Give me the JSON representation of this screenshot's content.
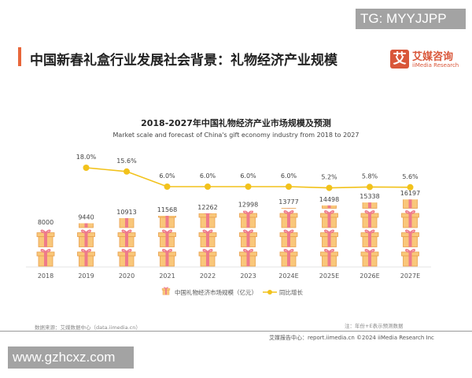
{
  "watermark_top": "TG: MYYJJPP",
  "watermark_bottom": "www.gzhcxz.com",
  "slide_title": "中国新春礼盒行业发展社会背景：礼物经济产业规模",
  "logo": {
    "mark": "艾",
    "cn": "艾媒咨询",
    "en": "iiMedia Research"
  },
  "source": "数据来源：艾媒数据中心（data.iimedia.cn）",
  "note": "注：年份+E表示预测数据",
  "footer": "艾媒报告中心：report.iimedia.cn    ©2024  iiMedia Research  Inc",
  "colors": {
    "accent": "#e8663a",
    "gift_box": "#f9c77a",
    "ribbon": "#ee7a8a",
    "line": "#f2c21b"
  },
  "chart_data": {
    "type": "bar+line",
    "title": "2018-2027年中国礼物经济产业市场规模及预测",
    "subtitle": "Market scale and forecast of China's gift economy industry from 2018 to 2027",
    "categories": [
      "2018",
      "2019",
      "2020",
      "2021",
      "2022",
      "2023",
      "2024E",
      "2025E",
      "2026E",
      "2027E"
    ],
    "series": [
      {
        "name": "中国礼物经济市场规模（亿元）",
        "type": "pictorial-bar",
        "values": [
          8000,
          9440,
          10913,
          11568,
          12262,
          12998,
          13777,
          14498,
          15338,
          16197
        ]
      },
      {
        "name": "同比增长",
        "type": "line",
        "unit": "%",
        "values": [
          null,
          18.0,
          15.6,
          6.0,
          6.0,
          6.0,
          6.0,
          5.2,
          5.8,
          5.6
        ],
        "labels": [
          "",
          "18.0%",
          "15.6%",
          "6.0%",
          "6.0%",
          "6.0%",
          "6.0%",
          "5.2%",
          "5.8%",
          "5.6%"
        ]
      }
    ],
    "legend": "bottom",
    "grid": false
  }
}
